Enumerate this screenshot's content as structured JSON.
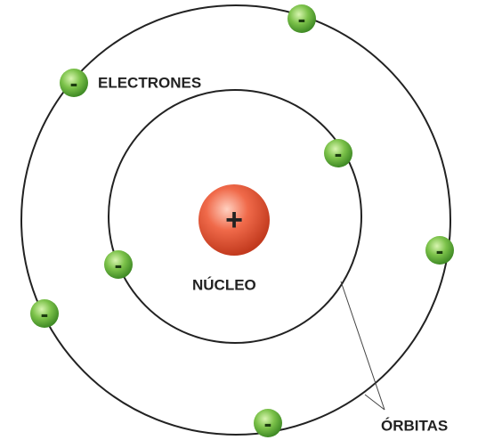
{
  "labels": {
    "electrons": "ELECTRONES",
    "nucleus": "NÚCLEO",
    "orbits": "ÓRBITAS"
  },
  "nucleus": {
    "sign": "+"
  },
  "electrons": [
    {
      "sign": "-"
    },
    {
      "sign": "-"
    },
    {
      "sign": "-"
    },
    {
      "sign": "-"
    },
    {
      "sign": "-"
    },
    {
      "sign": "-"
    },
    {
      "sign": "-"
    }
  ]
}
